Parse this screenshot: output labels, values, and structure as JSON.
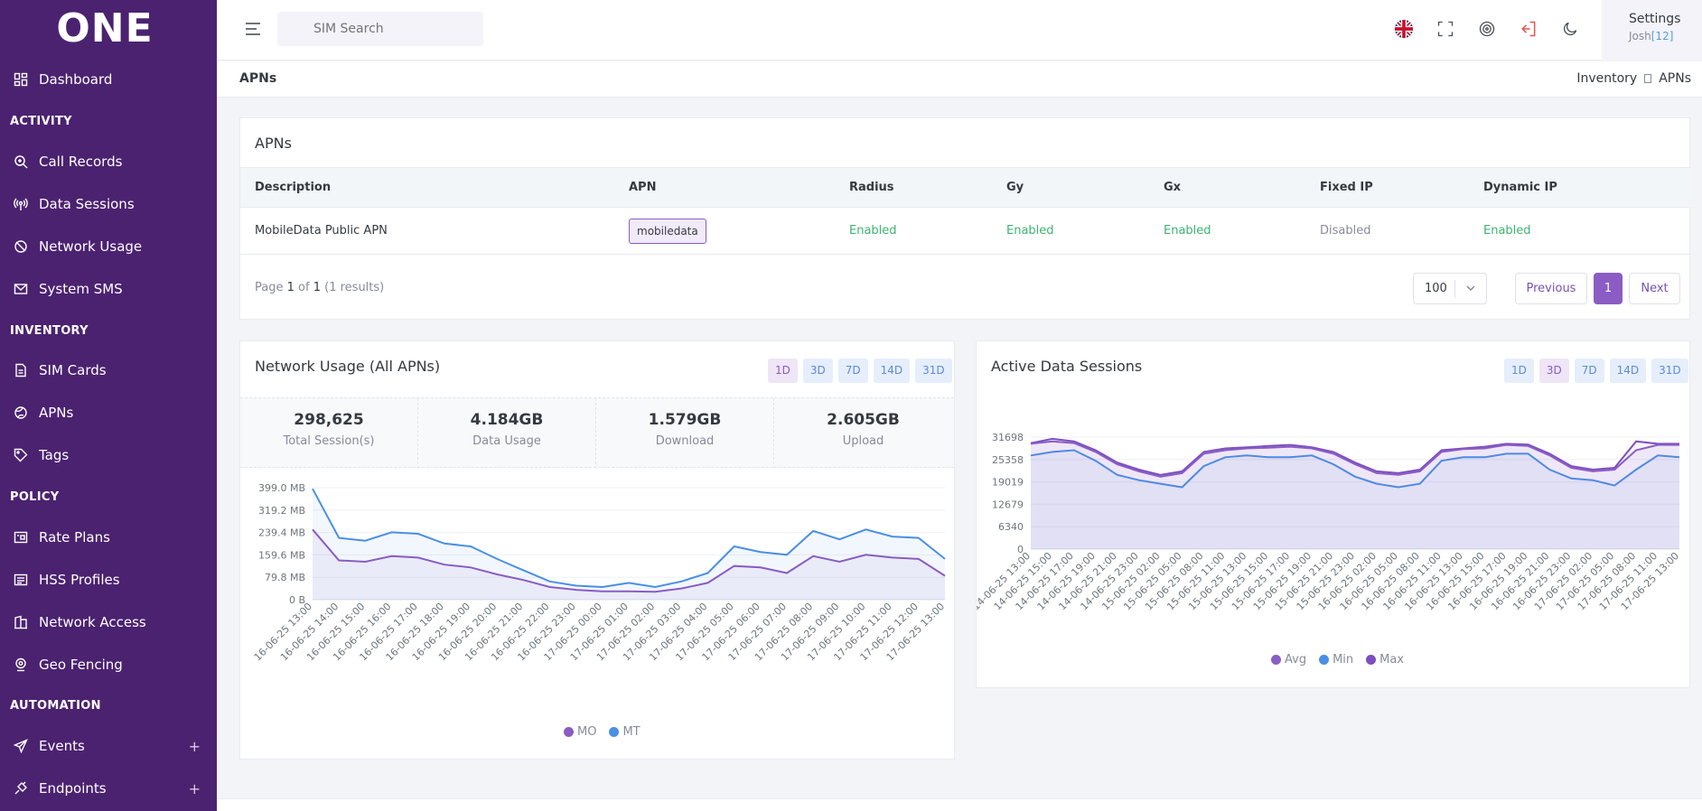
{
  "app": {
    "logo": "ONE"
  },
  "sidebar": {
    "dashboard": "Dashboard",
    "activity_heading": "ACTIVITY",
    "activity": [
      "Call Records",
      "Data Sessions",
      "Network Usage",
      "System SMS"
    ],
    "inventory_heading": "INVENTORY",
    "inventory": [
      "SIM Cards",
      "APNs",
      "Tags"
    ],
    "policy_heading": "POLICY",
    "policy": [
      "Rate Plans",
      "HSS Profiles",
      "Network Access",
      "Geo Fencing"
    ],
    "automation_heading": "AUTOMATION",
    "automation": [
      "Events",
      "Endpoints"
    ],
    "plus": "+"
  },
  "topbar": {
    "search_placeholder": "SIM Search",
    "settings_label": "Settings",
    "user_name": "Josh",
    "user_id": "[12]"
  },
  "page": {
    "title": "APNs",
    "breadcrumb": [
      "Inventory",
      "APNs"
    ]
  },
  "apn_table": {
    "title": "APNs",
    "columns": [
      "Description",
      "APN",
      "Radius",
      "Gy",
      "Gx",
      "Fixed IP",
      "Dynamic IP"
    ],
    "rows": [
      {
        "description": "MobileData Public APN",
        "apn": "mobiledata",
        "radius": "Enabled",
        "gy": "Enabled",
        "gx": "Enabled",
        "fixed_ip": "Disabled",
        "dynamic_ip": "Enabled"
      }
    ],
    "pager": {
      "page_word": "Page",
      "page": "1",
      "of_word": "of",
      "total_pages": "1",
      "results": "(1 results)",
      "page_size": "100",
      "previous": "Previous",
      "current": "1",
      "next": "Next"
    }
  },
  "network_usage": {
    "title": "Network Usage (All APNs)",
    "ranges": [
      "1D",
      "3D",
      "7D",
      "14D",
      "31D"
    ],
    "selected_range": "1D",
    "stats": [
      {
        "value": "298,625",
        "label": "Total Session(s)"
      },
      {
        "value": "4.184GB",
        "label": "Data Usage"
      },
      {
        "value": "1.579GB",
        "label": "Download"
      },
      {
        "value": "2.605GB",
        "label": "Upload"
      }
    ],
    "chart_data": {
      "type": "area",
      "y_ticks": [
        "399.0 MB",
        "319.2 MB",
        "239.4 MB",
        "159.6 MB",
        "79.8 MB",
        "0 B"
      ],
      "ylim": [
        0,
        399
      ],
      "grid": true,
      "legend": "bottom",
      "x": [
        "16-06-25 13:00",
        "16-06-25 14:00",
        "16-06-25 15:00",
        "16-06-25 16:00",
        "16-06-25 17:00",
        "16-06-25 18:00",
        "16-06-25 19:00",
        "16-06-25 20:00",
        "16-06-25 21:00",
        "16-06-25 22:00",
        "16-06-25 23:00",
        "17-06-25 00:00",
        "17-06-25 01:00",
        "17-06-25 02:00",
        "17-06-25 03:00",
        "17-06-25 04:00",
        "17-06-25 05:00",
        "17-06-25 06:00",
        "17-06-25 07:00",
        "17-06-25 08:00",
        "17-06-25 09:00",
        "17-06-25 10:00",
        "17-06-25 11:00",
        "17-06-25 12:00",
        "17-06-25 13:00"
      ],
      "series": [
        {
          "name": "MO",
          "color": "#8a5cc4",
          "values": [
            250,
            140,
            135,
            155,
            150,
            125,
            115,
            90,
            70,
            45,
            35,
            30,
            30,
            28,
            40,
            60,
            120,
            115,
            95,
            155,
            135,
            160,
            150,
            145,
            85
          ]
        },
        {
          "name": "MT",
          "color": "#4a8fe7",
          "values": [
            395,
            220,
            210,
            240,
            235,
            200,
            190,
            145,
            105,
            65,
            50,
            45,
            60,
            45,
            65,
            95,
            190,
            170,
            160,
            245,
            215,
            250,
            225,
            220,
            145
          ]
        }
      ]
    }
  },
  "active_sessions": {
    "title": "Active Data Sessions",
    "ranges": [
      "1D",
      "3D",
      "7D",
      "14D",
      "31D"
    ],
    "selected_range": "3D",
    "chart_data": {
      "type": "area",
      "y_ticks": [
        "31698",
        "25358",
        "19019",
        "12679",
        "6340",
        "0"
      ],
      "ylim": [
        0,
        31698
      ],
      "grid": true,
      "legend": "bottom",
      "x": [
        "14-06-25 13:00",
        "14-06-25 15:00",
        "14-06-25 17:00",
        "14-06-25 19:00",
        "14-06-25 21:00",
        "14-06-25 23:00",
        "15-06-25 02:00",
        "15-06-25 05:00",
        "15-06-25 08:00",
        "15-06-25 11:00",
        "15-06-25 13:00",
        "15-06-25 15:00",
        "15-06-25 17:00",
        "15-06-25 19:00",
        "15-06-25 21:00",
        "15-06-25 23:00",
        "16-06-25 02:00",
        "16-06-25 05:00",
        "16-06-25 08:00",
        "16-06-25 11:00",
        "16-06-25 13:00",
        "16-06-25 15:00",
        "16-06-25 17:00",
        "16-06-25 19:00",
        "16-06-25 21:00",
        "16-06-25 23:00",
        "17-06-25 02:00",
        "17-06-25 05:00",
        "17-06-25 08:00",
        "17-06-25 11:00",
        "17-06-25 13:00"
      ],
      "series": [
        {
          "name": "Avg",
          "color": "#8a5cc4",
          "values": [
            29800,
            30500,
            30000,
            27500,
            24000,
            22000,
            20500,
            21500,
            27000,
            28000,
            28500,
            28700,
            29000,
            28500,
            27000,
            24000,
            21500,
            21000,
            22000,
            27500,
            28300,
            28500,
            29500,
            29200,
            26500,
            23000,
            22000,
            22500,
            28000,
            29500,
            29500
          ]
        },
        {
          "name": "Min",
          "color": "#4a8fe7",
          "values": [
            26500,
            27500,
            28000,
            25000,
            21000,
            19500,
            18500,
            17500,
            23500,
            26000,
            26500,
            26000,
            26000,
            26500,
            24000,
            20500,
            18500,
            17500,
            18500,
            25000,
            26000,
            26000,
            27000,
            27000,
            22500,
            20000,
            19500,
            18000,
            22500,
            26500,
            26000
          ]
        },
        {
          "name": "Max",
          "color": "#7d4fc0",
          "values": [
            30000,
            31200,
            30500,
            28000,
            24500,
            22500,
            21000,
            22000,
            27500,
            28500,
            28800,
            29200,
            29500,
            28800,
            27500,
            24500,
            22000,
            21500,
            22500,
            28000,
            28500,
            29000,
            29800,
            29600,
            27000,
            23500,
            22500,
            23000,
            30500,
            29800,
            29800
          ]
        }
      ]
    }
  }
}
